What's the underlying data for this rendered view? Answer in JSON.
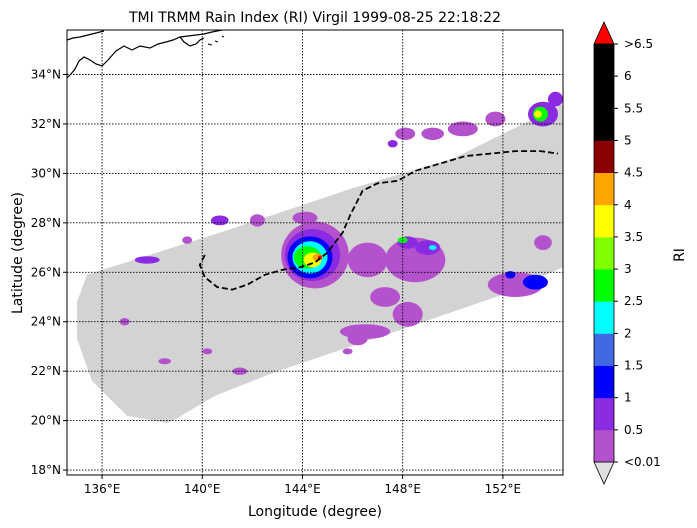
{
  "title": "TMI TRMM Rain Index (RI) Virgil 1999-08-25 22:18:22",
  "map": {
    "xlabel": "Longitude (degree)",
    "ylabel": "Latitude (degree)",
    "lon_range": [
      134.6,
      154.4
    ],
    "lat_range": [
      17.8,
      35.8
    ],
    "lon_ticks": [
      {
        "value": 136,
        "label": "136°E"
      },
      {
        "value": 140,
        "label": "140°E"
      },
      {
        "value": 144,
        "label": "144°E"
      },
      {
        "value": 148,
        "label": "148°E"
      },
      {
        "value": 152,
        "label": "152°E"
      }
    ],
    "lat_ticks": [
      {
        "value": 18,
        "label": "18°N"
      },
      {
        "value": 20,
        "label": "20°N"
      },
      {
        "value": 22,
        "label": "22°N"
      },
      {
        "value": 24,
        "label": "24°N"
      },
      {
        "value": 26,
        "label": "26°N"
      },
      {
        "value": 28,
        "label": "28°N"
      },
      {
        "value": 30,
        "label": "30°N"
      },
      {
        "value": 32,
        "label": "32°N"
      },
      {
        "value": 34,
        "label": "34°N"
      }
    ],
    "grid": true,
    "swath_color": "#d3d3d3",
    "swath_outline": [
      [
        135.4,
        25.9
      ],
      [
        141,
        27.7
      ],
      [
        146,
        29.4
      ],
      [
        150,
        30.6
      ],
      [
        154.4,
        32.8
      ],
      [
        154.4,
        26.2
      ],
      [
        152,
        25.1
      ],
      [
        148,
        23.7
      ],
      [
        143,
        22
      ],
      [
        140.5,
        21
      ],
      [
        139,
        20.1
      ],
      [
        138.6,
        19.9
      ],
      [
        137,
        20.2
      ],
      [
        135.6,
        21.6
      ],
      [
        135,
        23.3
      ],
      [
        135,
        24.8
      ]
    ],
    "storm_track": [
      [
        140.1,
        26.7
      ],
      [
        139.9,
        26.3
      ],
      [
        140.1,
        25.8
      ],
      [
        140.6,
        25.4
      ],
      [
        141.2,
        25.3
      ],
      [
        141.8,
        25.5
      ],
      [
        142.5,
        25.9
      ],
      [
        143.2,
        26.1
      ],
      [
        143.9,
        26.2
      ],
      [
        144.5,
        26.4
      ],
      [
        145,
        26.8
      ],
      [
        145.6,
        27.6
      ],
      [
        145.9,
        28.3
      ],
      [
        146.4,
        29.3
      ],
      [
        147,
        29.6
      ],
      [
        147.8,
        29.7
      ],
      [
        148.5,
        30.1
      ],
      [
        149.5,
        30.4
      ],
      [
        150.5,
        30.7
      ],
      [
        151.5,
        30.8
      ],
      [
        152.5,
        30.9
      ],
      [
        153.5,
        30.9
      ],
      [
        154.2,
        30.8
      ]
    ],
    "rain_blobs": [
      {
        "lon": 144.5,
        "lat": 26.7,
        "rx": 1.35,
        "ry": 1.35,
        "color": "#b452cd"
      },
      {
        "lon": 144.4,
        "lat": 26.7,
        "rx": 1.1,
        "ry": 1.05,
        "color": "#8a2be2"
      },
      {
        "lon": 144.3,
        "lat": 26.6,
        "rx": 0.9,
        "ry": 0.85,
        "color": "#0000ff"
      },
      {
        "lon": 144.3,
        "lat": 26.6,
        "rx": 0.7,
        "ry": 0.65,
        "color": "#00ffff"
      },
      {
        "lon": 144.2,
        "lat": 26.6,
        "rx": 0.55,
        "ry": 0.45,
        "color": "#00ff00"
      },
      {
        "lon": 144.4,
        "lat": 26.5,
        "rx": 0.35,
        "ry": 0.3,
        "color": "#ffff00"
      },
      {
        "lon": 144.6,
        "lat": 26.6,
        "rx": 0.2,
        "ry": 0.15,
        "color": "#ffa500"
      },
      {
        "lon": 144.7,
        "lat": 26.6,
        "rx": 0.08,
        "ry": 0.08,
        "color": "#ff0000"
      },
      {
        "lon": 144.1,
        "lat": 28.2,
        "rx": 0.5,
        "ry": 0.25,
        "color": "#b452cd"
      },
      {
        "lon": 146.6,
        "lat": 26.5,
        "rx": 0.8,
        "ry": 0.7,
        "color": "#b452cd"
      },
      {
        "lon": 148.5,
        "lat": 26.5,
        "rx": 1.2,
        "ry": 0.9,
        "color": "#b452cd"
      },
      {
        "lon": 148.2,
        "lat": 27.2,
        "rx": 0.4,
        "ry": 0.25,
        "color": "#8a2be2"
      },
      {
        "lon": 149.0,
        "lat": 27.0,
        "rx": 0.5,
        "ry": 0.3,
        "color": "#8a2be2"
      },
      {
        "lon": 148.0,
        "lat": 27.3,
        "rx": 0.2,
        "ry": 0.12,
        "color": "#00ff00"
      },
      {
        "lon": 149.2,
        "lat": 27.0,
        "rx": 0.15,
        "ry": 0.1,
        "color": "#00ffff"
      },
      {
        "lon": 148.2,
        "lat": 24.3,
        "rx": 0.6,
        "ry": 0.5,
        "color": "#b452cd"
      },
      {
        "lon": 146.5,
        "lat": 23.6,
        "rx": 1.0,
        "ry": 0.3,
        "color": "#b452cd"
      },
      {
        "lon": 146.2,
        "lat": 23.3,
        "rx": 0.4,
        "ry": 0.25,
        "color": "#b452cd"
      },
      {
        "lon": 147.3,
        "lat": 25.0,
        "rx": 0.6,
        "ry": 0.4,
        "color": "#b452cd"
      },
      {
        "lon": 152.5,
        "lat": 25.5,
        "rx": 1.1,
        "ry": 0.5,
        "color": "#b452cd"
      },
      {
        "lon": 152.3,
        "lat": 25.9,
        "rx": 0.2,
        "ry": 0.15,
        "color": "#0000ff"
      },
      {
        "lon": 153.3,
        "lat": 25.6,
        "rx": 0.5,
        "ry": 0.3,
        "color": "#0000ff"
      },
      {
        "lon": 153.6,
        "lat": 27.2,
        "rx": 0.35,
        "ry": 0.3,
        "color": "#b452cd"
      },
      {
        "lon": 153.6,
        "lat": 32.4,
        "rx": 0.6,
        "ry": 0.5,
        "color": "#8a2be2"
      },
      {
        "lon": 153.5,
        "lat": 32.4,
        "rx": 0.3,
        "ry": 0.3,
        "color": "#00ff00"
      },
      {
        "lon": 153.4,
        "lat": 32.4,
        "rx": 0.15,
        "ry": 0.15,
        "color": "#ffff00"
      },
      {
        "lon": 154.1,
        "lat": 33.0,
        "rx": 0.3,
        "ry": 0.3,
        "color": "#8a2be2"
      },
      {
        "lon": 150.4,
        "lat": 31.8,
        "rx": 0.6,
        "ry": 0.3,
        "color": "#b452cd"
      },
      {
        "lon": 151.7,
        "lat": 32.2,
        "rx": 0.4,
        "ry": 0.3,
        "color": "#b452cd"
      },
      {
        "lon": 149.2,
        "lat": 31.6,
        "rx": 0.45,
        "ry": 0.25,
        "color": "#b452cd"
      },
      {
        "lon": 148.1,
        "lat": 31.6,
        "rx": 0.4,
        "ry": 0.25,
        "color": "#b452cd"
      },
      {
        "lon": 147.6,
        "lat": 31.2,
        "rx": 0.2,
        "ry": 0.15,
        "color": "#8a2be2"
      },
      {
        "lon": 142.2,
        "lat": 28.1,
        "rx": 0.3,
        "ry": 0.25,
        "color": "#b452cd"
      },
      {
        "lon": 140.7,
        "lat": 28.1,
        "rx": 0.35,
        "ry": 0.2,
        "color": "#8a2be2"
      },
      {
        "lon": 137.8,
        "lat": 26.5,
        "rx": 0.5,
        "ry": 0.15,
        "color": "#8a2be2"
      },
      {
        "lon": 139.4,
        "lat": 27.3,
        "rx": 0.2,
        "ry": 0.15,
        "color": "#b452cd"
      },
      {
        "lon": 136.9,
        "lat": 24.0,
        "rx": 0.2,
        "ry": 0.15,
        "color": "#b452cd"
      },
      {
        "lon": 138.5,
        "lat": 22.4,
        "rx": 0.25,
        "ry": 0.12,
        "color": "#b452cd"
      },
      {
        "lon": 141.5,
        "lat": 22.0,
        "rx": 0.3,
        "ry": 0.15,
        "color": "#b452cd"
      },
      {
        "lon": 140.2,
        "lat": 22.8,
        "rx": 0.2,
        "ry": 0.12,
        "color": "#b452cd"
      },
      {
        "lon": 145.8,
        "lat": 22.8,
        "rx": 0.2,
        "ry": 0.12,
        "color": "#b452cd"
      }
    ]
  },
  "colorbar": {
    "label": "RI",
    "under_color": "#e0e0e0",
    "over_color": "#ff0000",
    "colors": [
      "#b452cd",
      "#8a2be2",
      "#0000ff",
      "#4169e1",
      "#00ffff",
      "#00ff00",
      "#7fff00",
      "#ffff00",
      "#ffa500",
      "#8b0000",
      "#000000",
      "#000000",
      "#000000"
    ],
    "tick_labels": [
      "<0.01",
      "0.5",
      "1",
      "1.5",
      "2",
      "2.5",
      "3",
      "3.5",
      "4",
      "4.5",
      "5",
      "5.5",
      "6",
      ">6.5"
    ]
  }
}
